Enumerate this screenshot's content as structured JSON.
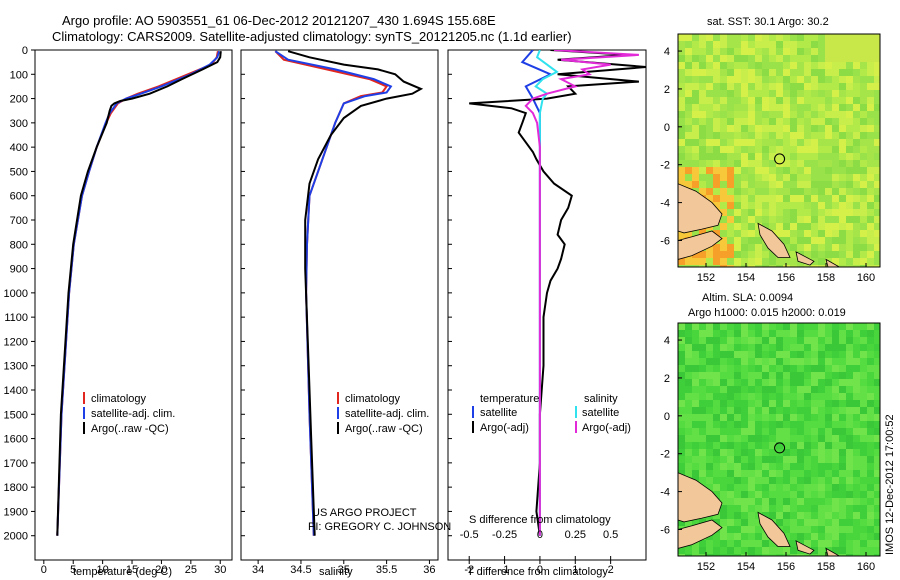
{
  "header": {
    "line1": "Argo profile: AO 5903551_61 06-Dec-2012 20121207_430 1.694S 155.68E",
    "line2": "Climatology: CARS2009. Satellite-adjusted climatology: synTS_20121205.nc (1.1d earlier)"
  },
  "credits": {
    "project": "US ARGO PROJECT",
    "pi": "PI: GREGORY C. JOHNSON",
    "stamp": "IMOS 12-Dec-2012 17:00:52"
  },
  "colors": {
    "climatology": "#e0261f",
    "satellite": "#1f3fe6",
    "argo": "#000000",
    "sal_satellite": "#2fe2ee",
    "sal_argo": "#e22ad8"
  },
  "chart_data": [
    {
      "type": "line",
      "name": "temperature-profile",
      "xlabel": "temperature (deg C)",
      "ylabel": "",
      "xlim": [
        -1.5,
        32
      ],
      "ylim": [
        2100,
        0
      ],
      "xticks": [
        0,
        5,
        10,
        15,
        20,
        25,
        30
      ],
      "yticks": [
        0,
        100,
        200,
        300,
        400,
        500,
        600,
        700,
        800,
        900,
        1000,
        1100,
        1200,
        1300,
        1400,
        1500,
        1600,
        1700,
        1800,
        1900,
        2000
      ],
      "legend": [
        "climatology",
        "satellite-adj. clim.",
        "Argo(..raw -QC)"
      ],
      "series": [
        {
          "name": "climatology",
          "depth": [
            5,
            30,
            60,
            100,
            150,
            180,
            200,
            220,
            240,
            260,
            300,
            400,
            500,
            600,
            800,
            1000,
            1500,
            2000
          ],
          "values": [
            29.6,
            29.4,
            28.5,
            24.5,
            19.5,
            16.0,
            14.0,
            12.6,
            12.0,
            11.4,
            10.6,
            9.0,
            7.7,
            6.5,
            5.1,
            4.3,
            3.0,
            2.3
          ]
        },
        {
          "name": "satellite-adj. clim.",
          "depth": [
            5,
            30,
            60,
            100,
            150,
            180,
            200,
            220,
            240,
            260,
            300,
            400,
            500,
            600,
            800,
            1000,
            1500,
            2000
          ],
          "values": [
            29.8,
            29.5,
            28.2,
            25.0,
            20.0,
            16.5,
            14.0,
            12.4,
            11.8,
            11.2,
            10.5,
            9.0,
            7.7,
            6.5,
            5.1,
            4.3,
            3.0,
            2.3
          ]
        },
        {
          "name": "Argo(..raw -QC)",
          "depth": [
            5,
            30,
            50,
            80,
            120,
            150,
            180,
            200,
            210,
            220,
            230,
            250,
            300,
            400,
            500,
            600,
            800,
            1000,
            1500,
            2000
          ],
          "values": [
            30.1,
            30.0,
            29.5,
            27.0,
            23.5,
            21.0,
            18.0,
            15.0,
            13.0,
            12.0,
            11.5,
            11.2,
            10.7,
            9.0,
            7.5,
            6.3,
            5.0,
            4.2,
            2.9,
            2.3
          ]
        }
      ]
    },
    {
      "type": "line",
      "name": "salinity-profile",
      "xlabel": "salinity",
      "xlim": [
        33.8,
        36.1
      ],
      "ylim": [
        2100,
        0
      ],
      "xticks": [
        34,
        34.5,
        35,
        35.5,
        36
      ],
      "legend": [
        "climatology",
        "satellite-adj. clim.",
        "Argo(..raw -QC)"
      ],
      "series": [
        {
          "name": "climatology",
          "depth": [
            5,
            40,
            80,
            120,
            150,
            175,
            190,
            220,
            260,
            300,
            400,
            500,
            600,
            800,
            1000,
            1500,
            2000
          ],
          "values": [
            34.2,
            34.3,
            34.8,
            35.3,
            35.5,
            35.45,
            35.2,
            35.0,
            34.95,
            34.9,
            34.8,
            34.7,
            34.6,
            34.57,
            34.56,
            34.6,
            34.65
          ]
        },
        {
          "name": "satellite-adj. clim.",
          "depth": [
            5,
            40,
            80,
            120,
            150,
            175,
            190,
            220,
            260,
            300,
            400,
            500,
            600,
            800,
            1000,
            1500,
            2000
          ],
          "values": [
            34.2,
            34.35,
            34.9,
            35.35,
            35.55,
            35.5,
            35.25,
            35.0,
            34.95,
            34.9,
            34.8,
            34.7,
            34.6,
            34.57,
            34.56,
            34.6,
            34.65
          ]
        },
        {
          "name": "Argo(..raw -QC)",
          "depth": [
            5,
            30,
            60,
            80,
            100,
            130,
            160,
            180,
            200,
            230,
            280,
            350,
            450,
            550,
            700,
            900,
            1200,
            1600,
            2000
          ],
          "values": [
            34.35,
            34.6,
            35.0,
            35.4,
            35.6,
            35.7,
            35.9,
            35.8,
            35.5,
            35.2,
            35.0,
            34.85,
            34.7,
            34.6,
            34.55,
            34.55,
            34.58,
            34.62,
            34.66
          ]
        }
      ]
    },
    {
      "type": "line",
      "name": "difference-profile",
      "xlabel": "T difference from climatology",
      "xlabel_top": "S difference from climatology",
      "xlim": [
        -2.6,
        3.0
      ],
      "xlim_salinity": [
        -0.65,
        0.75
      ],
      "ylim": [
        2100,
        0
      ],
      "xticks": [
        -2,
        -1,
        0,
        1,
        2
      ],
      "xticks_salinity": [
        "-0.5",
        "-0.25",
        "0",
        "0.25",
        "0.5"
      ],
      "xticks_salinity_values": [
        -0.5,
        -0.25,
        0,
        0.25,
        0.5
      ],
      "legend_titles": [
        "temperature",
        "salinity"
      ],
      "legend": [
        "satellite",
        "Argo(-adj)",
        "satellite",
        "Argo(-adj)"
      ],
      "series": [
        {
          "name": "T satellite",
          "depth": [
            0,
            50,
            100,
            150,
            200,
            230,
            260,
            300,
            400,
            500,
            600,
            800,
            1000,
            1500,
            1900,
            2000
          ],
          "values": [
            -0.2,
            -0.5,
            0.3,
            -0.4,
            -0.2,
            -0.1,
            0.0,
            0.0,
            0.0,
            0.0,
            0.0,
            0.0,
            0.0,
            0.0,
            0.0,
            0.0
          ]
        },
        {
          "name": "T Argo(-adj)",
          "depth": [
            0,
            20,
            40,
            70,
            100,
            130,
            150,
            180,
            200,
            220,
            240,
            260,
            300,
            340,
            380,
            420,
            450,
            500,
            550,
            600,
            650,
            700,
            760,
            800,
            860,
            900,
            950,
            1000,
            1100,
            1300,
            1500,
            1700,
            1900,
            2000
          ],
          "values": [
            0.3,
            2.5,
            0.5,
            3.0,
            0.5,
            2.8,
            0.8,
            1.0,
            0.2,
            -2.0,
            -0.8,
            -0.4,
            -0.5,
            -0.6,
            -0.4,
            -0.2,
            -0.1,
            0.1,
            0.4,
            0.9,
            0.8,
            0.6,
            0.5,
            0.7,
            0.6,
            0.5,
            0.3,
            0.2,
            0.1,
            0.1,
            0.0,
            0.0,
            -0.1,
            0.0
          ]
        },
        {
          "name": "S satellite",
          "depth": [
            0,
            30,
            60,
            90,
            120,
            150,
            180,
            200,
            230,
            260,
            300,
            400,
            500,
            600,
            800,
            1000,
            1500,
            1900,
            2000
          ],
          "values": [
            0.0,
            -0.02,
            0.05,
            0.12,
            0.02,
            -0.03,
            0.05,
            0.02,
            0.01,
            0.0,
            0.0,
            0.0,
            0.0,
            0.0,
            0.0,
            0.0,
            0.0,
            0.0,
            0.0
          ]
        },
        {
          "name": "S Argo(-adj)",
          "depth": [
            0,
            20,
            40,
            60,
            80,
            100,
            120,
            150,
            180,
            200,
            230,
            260,
            300,
            400,
            500,
            600,
            800,
            1000,
            1200,
            1500,
            1900,
            2000
          ],
          "values": [
            0.1,
            0.7,
            0.15,
            0.5,
            0.3,
            0.35,
            0.15,
            0.25,
            0.05,
            -0.05,
            -0.1,
            -0.05,
            -0.02,
            0.0,
            0.0,
            0.0,
            0.0,
            0.0,
            0.0,
            0.0,
            0.0,
            0.0
          ]
        }
      ]
    },
    {
      "type": "heatmap",
      "name": "sst-map",
      "title": "sat. SST: 30.1  Argo: 30.2",
      "xticks": [
        152,
        154,
        156,
        158,
        160
      ],
      "yticks": [
        4,
        2,
        0,
        -2,
        -4,
        -6
      ]
    },
    {
      "type": "heatmap",
      "name": "sla-map",
      "title_line1": "Altim. SLA: 0.0094",
      "title_line2": "Argo h1000: 0.015 h2000: 0.019",
      "xticks": [
        152,
        154,
        156,
        158,
        160
      ],
      "yticks": [
        4,
        2,
        0,
        -2,
        -4,
        -6
      ]
    }
  ]
}
